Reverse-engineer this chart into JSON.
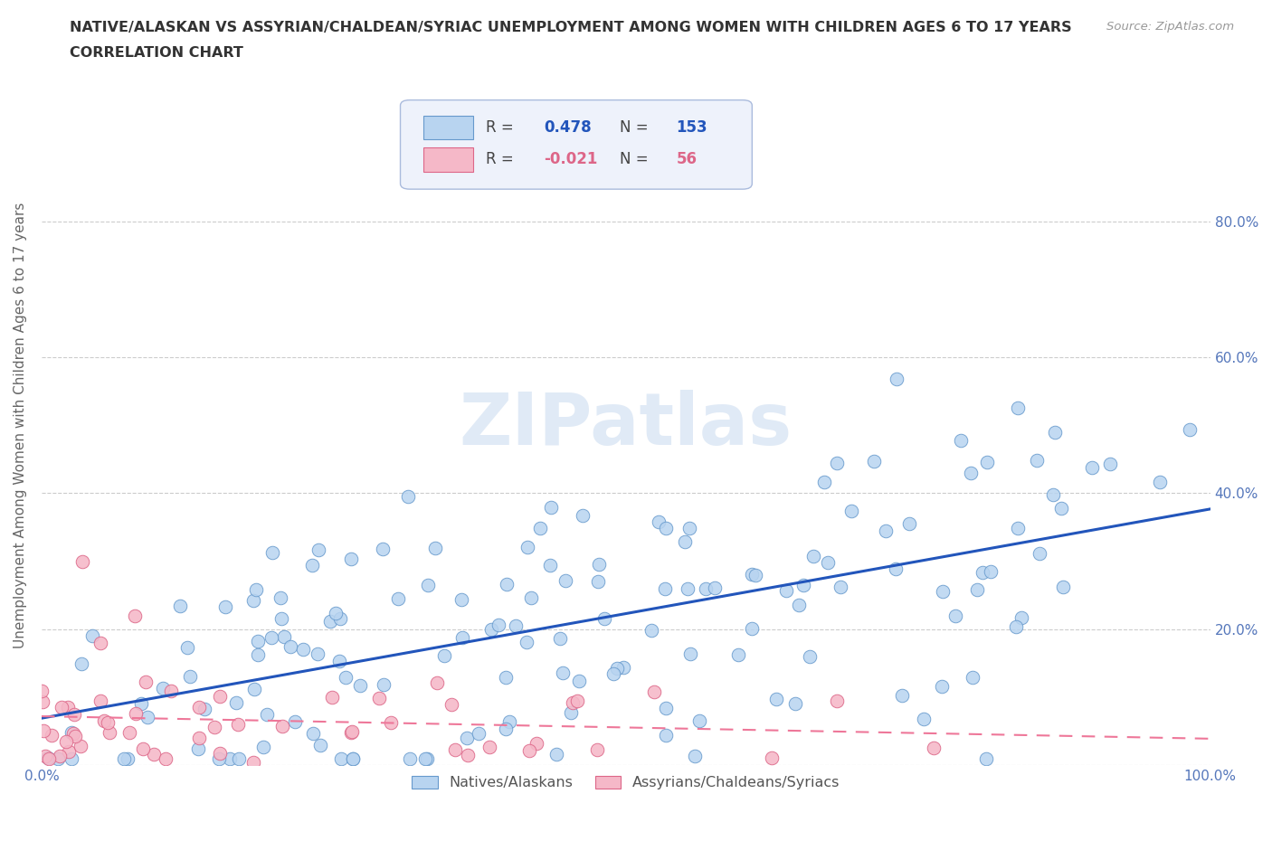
{
  "title_line1": "NATIVE/ALASKAN VS ASSYRIAN/CHALDEAN/SYRIAC UNEMPLOYMENT AMONG WOMEN WITH CHILDREN AGES 6 TO 17 YEARS",
  "title_line2": "CORRELATION CHART",
  "source": "Source: ZipAtlas.com",
  "ylabel": "Unemployment Among Women with Children Ages 6 to 17 years",
  "native_color": "#b8d4f0",
  "native_edge_color": "#6699cc",
  "assyrian_color": "#f5b8c8",
  "assyrian_edge_color": "#dd6688",
  "trendline_native_color": "#2255bb",
  "trendline_assyrian_color": "#ee7799",
  "legend_box_color": "#eef2fb",
  "legend_edge_color": "#aabbdd",
  "R_native": "0.478",
  "N_native": "153",
  "R_assyrian": "-0.021",
  "N_assyrian": "56",
  "grid_color": "#cccccc",
  "background_color": "#ffffff",
  "title_fontsize": 11.5,
  "axis_label_fontsize": 11,
  "tick_fontsize": 11,
  "watermark_color": "#dde8f5",
  "tick_color": "#5577bb",
  "ylabel_color": "#666666",
  "title_color": "#333333",
  "source_color": "#999999"
}
